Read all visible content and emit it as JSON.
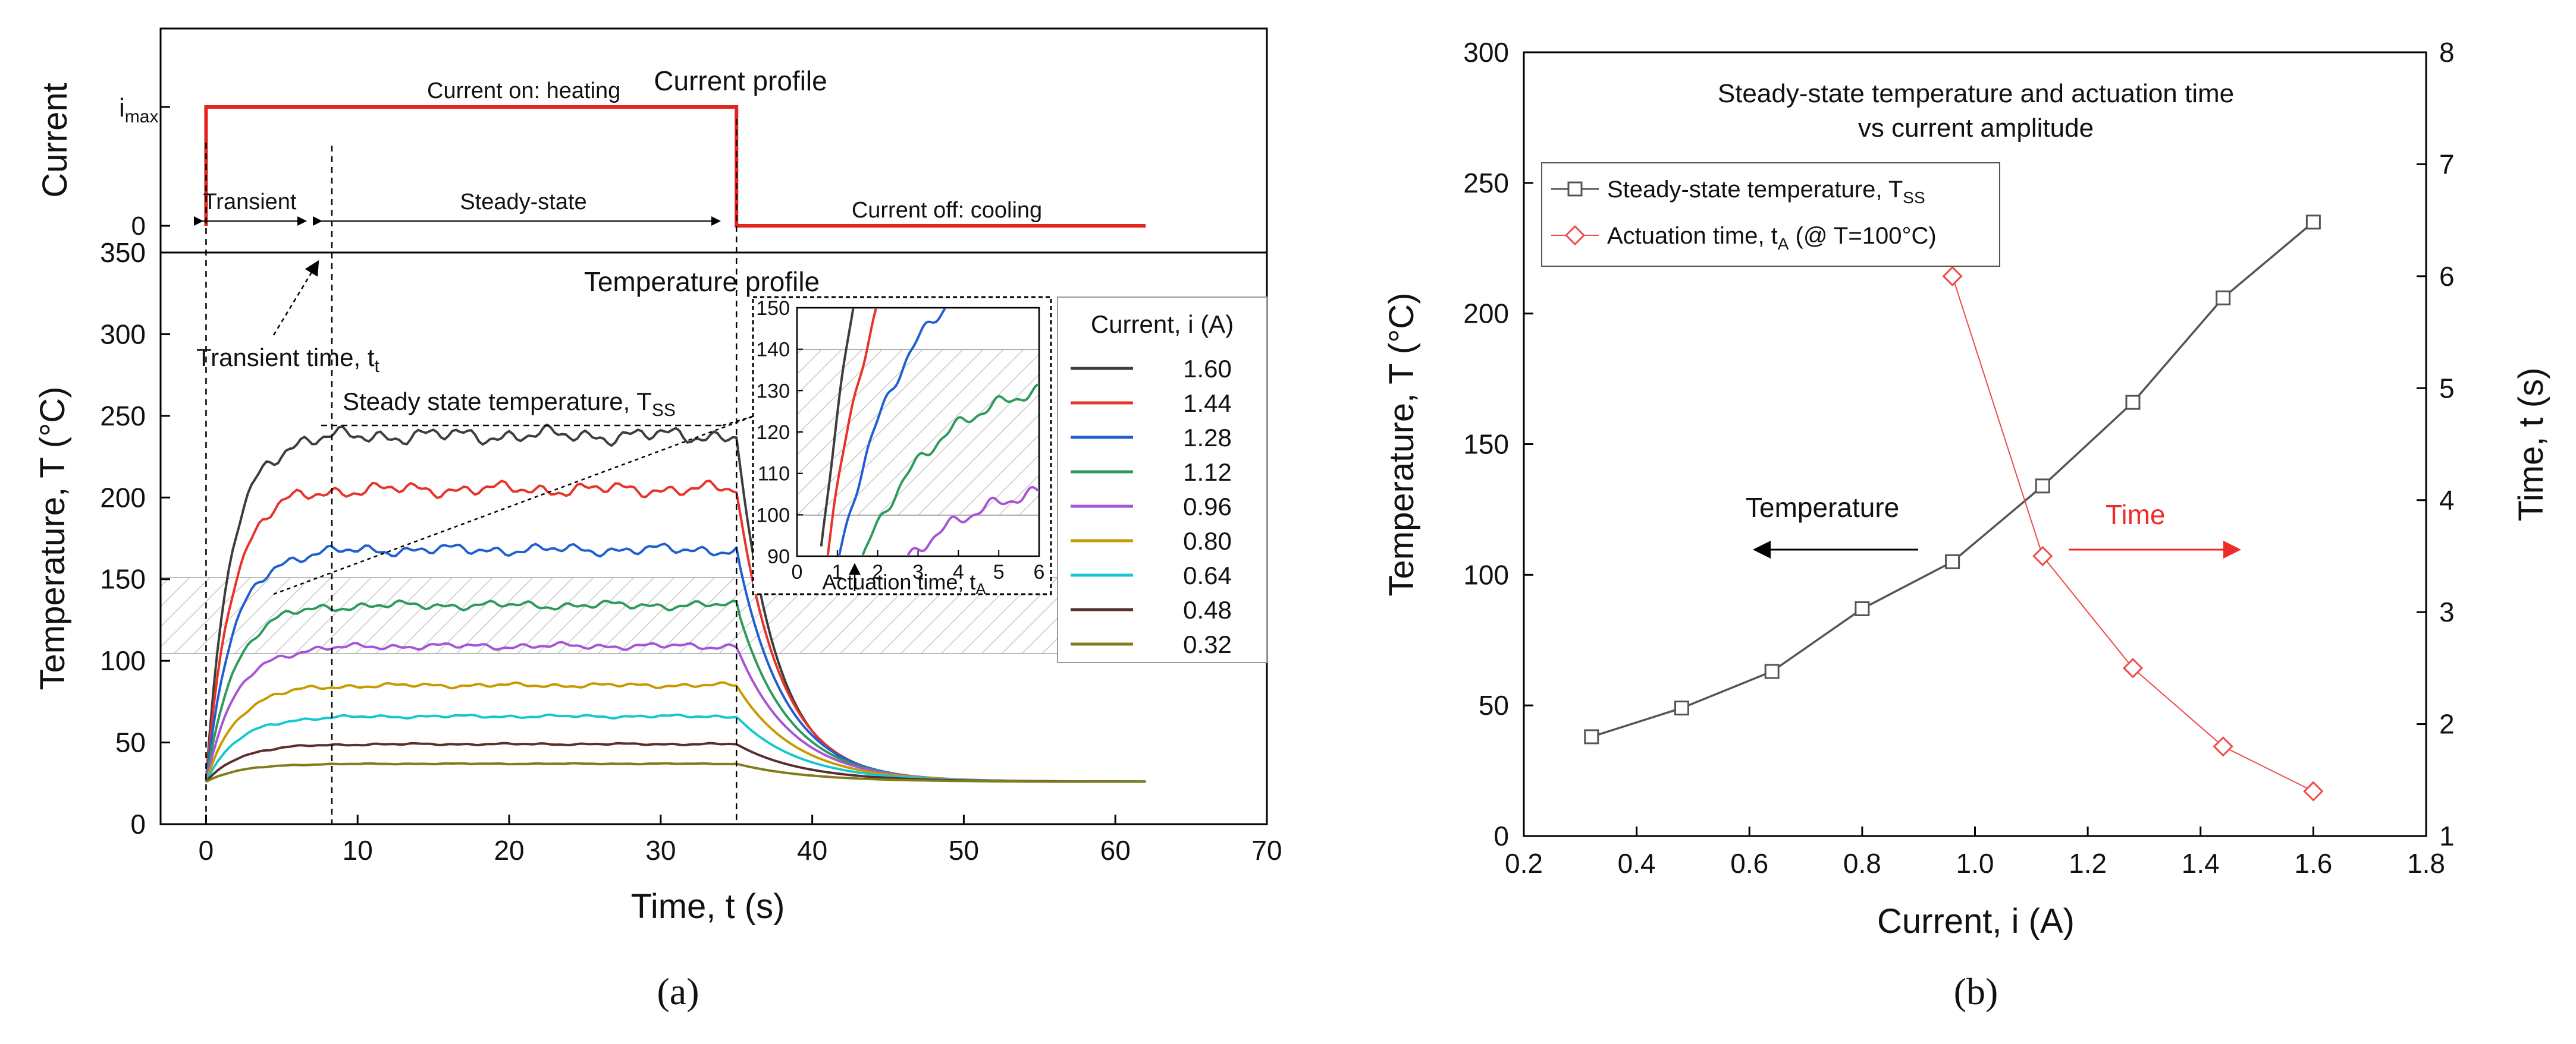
{
  "chart_data": [
    {
      "id": "a",
      "panel_label": "(a)",
      "type": "line",
      "current_profile": {
        "title": "Current profile",
        "ylabel": "Current",
        "ytick_labels": [
          "i",
          "max",
          "0"
        ],
        "t_on": 0,
        "t_off": 35,
        "t_end": 62,
        "annotations": {
          "heating": "Current on: heating",
          "transient": "Transient",
          "steady": "Steady-state",
          "cooling": "Current off: cooling"
        }
      },
      "temperature_profile": {
        "title": "Temperature profile",
        "xlabel": "Time, t (s)",
        "ylabel": "Temperature, T (°C)",
        "xlim": [
          -3,
          70
        ],
        "ylim": [
          0,
          350
        ],
        "xticks": [
          0,
          10,
          20,
          30,
          40,
          50,
          60,
          70
        ],
        "yticks": [
          0,
          50,
          100,
          150,
          200,
          250,
          300,
          350
        ],
        "transient_time_s": 8.3,
        "transient_label": "Transient time, t",
        "transient_label_sub": "t",
        "steady_label": "Steady state temperature, T",
        "steady_label_sub": "SS",
        "legend_title": "Current, i (A)",
        "series": [
          {
            "name": "1.60",
            "current": 1.6,
            "tss": 238,
            "color": "#3d3d3d"
          },
          {
            "name": "1.44",
            "current": 1.44,
            "tss": 205,
            "color": "#e8332a"
          },
          {
            "name": "1.28",
            "current": 1.28,
            "tss": 168,
            "color": "#1f5fd0"
          },
          {
            "name": "1.12",
            "current": 1.12,
            "tss": 134,
            "color": "#2e9a5a"
          },
          {
            "name": "0.96",
            "current": 0.96,
            "tss": 109,
            "color": "#a654d6"
          },
          {
            "name": "0.80",
            "current": 0.8,
            "tss": 85,
            "color": "#c79a00"
          },
          {
            "name": "0.64",
            "current": 0.64,
            "tss": 66,
            "color": "#16c7cf"
          },
          {
            "name": "0.48",
            "current": 0.48,
            "tss": 49,
            "color": "#5a2e2e"
          },
          {
            "name": "0.32",
            "current": 0.32,
            "tss": 37,
            "color": "#7d7d1c"
          }
        ]
      },
      "inset": {
        "xlabel": "Actuation time, t",
        "xlabel_sub": "A",
        "xlim": [
          0,
          6
        ],
        "ylim": [
          90,
          150
        ],
        "xticks": [
          0,
          1,
          2,
          3,
          4,
          5,
          6
        ],
        "yticks": [
          90,
          100,
          110,
          120,
          130,
          140,
          150
        ]
      }
    },
    {
      "id": "b",
      "panel_label": "(b)",
      "type": "line",
      "title_line1": "Steady-state temperature and actuation time",
      "title_line2": "vs current amplitude",
      "xlabel": "Current, i (A)",
      "ylabel": "Temperature, T (°C)",
      "ylabel_right": "Time, t (s)",
      "xlim": [
        0.2,
        1.8
      ],
      "ylim": [
        0,
        300
      ],
      "ylim_right": [
        1,
        8
      ],
      "xticks": [
        0.2,
        0.4,
        0.6,
        0.8,
        1.0,
        1.2,
        1.4,
        1.6,
        1.8
      ],
      "yticks": [
        0,
        50,
        100,
        150,
        200,
        250,
        300
      ],
      "yticks_right": [
        1,
        2,
        3,
        4,
        5,
        6,
        7,
        8
      ],
      "temperature_arrow_label": "Temperature",
      "time_arrow_label": "Time",
      "series": [
        {
          "name": "Steady-state temperature, T",
          "name_sub": "SS",
          "axis": "left",
          "marker": "square",
          "color": "#555555",
          "x": [
            0.32,
            0.48,
            0.64,
            0.8,
            0.96,
            1.12,
            1.28,
            1.44,
            1.6
          ],
          "y": [
            38,
            49,
            63,
            87,
            105,
            134,
            166,
            206,
            235
          ]
        },
        {
          "name": "Actuation time, t",
          "name_sub": "A",
          "name_suffix": " (@ T=100°C)",
          "axis": "right",
          "marker": "diamond",
          "color": "#f04a4a",
          "x": [
            0.96,
            1.12,
            1.28,
            1.44,
            1.6
          ],
          "y": [
            6.0,
            3.5,
            2.5,
            1.8,
            1.4
          ]
        }
      ]
    }
  ]
}
